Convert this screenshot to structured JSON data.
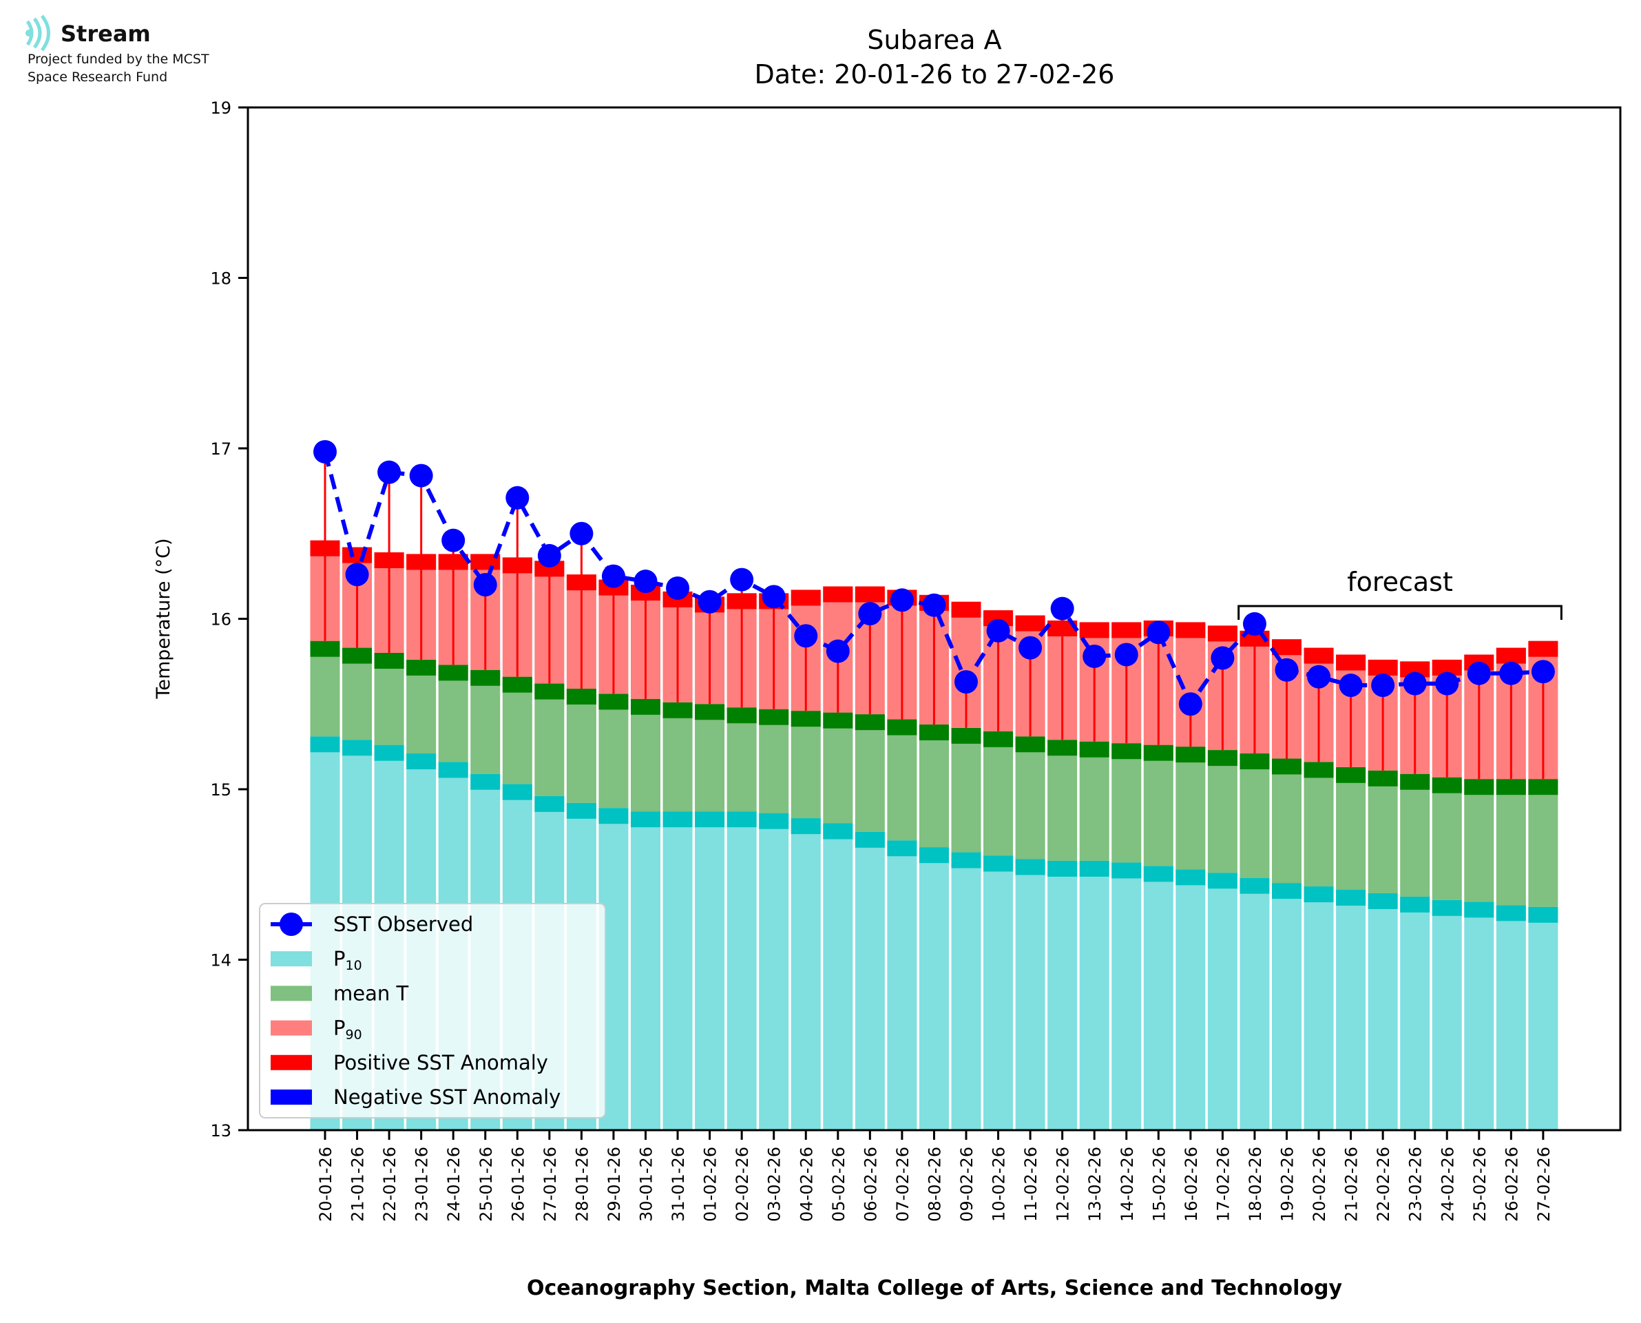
{
  "logo": {
    "name": "Stream",
    "line1": "Project funded by the MCST",
    "line2": "Space Research Fund"
  },
  "colors": {
    "p10": "#80dfdf",
    "p10_cap": "#00c2c2",
    "mean": "#80c080",
    "mean_cap": "#008000",
    "p90": "#ff7f7f",
    "p90_cap": "#ff0000",
    "observed": "#0000ff",
    "anomaly_line": "#ff0000",
    "legend_bg": "#ffffff"
  },
  "chart_data": {
    "type": "bar",
    "title": "Subarea A",
    "subtitle": "Date: 20-01-26 to 27-02-26",
    "xlabel": "Oceanography Section, Malta College of Arts, Science and Technology",
    "ylabel": "Temperature (°C)",
    "ylim": [
      13,
      19
    ],
    "yticks": [
      "13",
      "14",
      "15",
      "16",
      "17",
      "18",
      "19"
    ],
    "grid": false,
    "legend_position": "lower-left",
    "annotation": "forecast",
    "forecast_start_index": 29,
    "categories": [
      "20-01-26",
      "21-01-26",
      "22-01-26",
      "23-01-26",
      "24-01-26",
      "25-01-26",
      "26-01-26",
      "27-01-26",
      "28-01-26",
      "29-01-26",
      "30-01-26",
      "31-01-26",
      "01-02-26",
      "02-02-26",
      "03-02-26",
      "04-02-26",
      "05-02-26",
      "06-02-26",
      "07-02-26",
      "08-02-26",
      "09-02-26",
      "10-02-26",
      "11-02-26",
      "12-02-26",
      "13-02-26",
      "14-02-26",
      "15-02-26",
      "16-02-26",
      "17-02-26",
      "18-02-26",
      "19-02-26",
      "20-02-26",
      "21-02-26",
      "22-02-26",
      "23-02-26",
      "24-02-26",
      "25-02-26",
      "26-02-26",
      "27-02-26"
    ],
    "p10": [
      15.31,
      15.29,
      15.26,
      15.21,
      15.16,
      15.09,
      15.03,
      14.96,
      14.92,
      14.89,
      14.87,
      14.87,
      14.87,
      14.87,
      14.86,
      14.83,
      14.8,
      14.75,
      14.7,
      14.66,
      14.63,
      14.61,
      14.59,
      14.58,
      14.58,
      14.57,
      14.55,
      14.53,
      14.51,
      14.48,
      14.45,
      14.43,
      14.41,
      14.39,
      14.37,
      14.35,
      14.34,
      14.32,
      14.31
    ],
    "mean": [
      15.87,
      15.83,
      15.8,
      15.76,
      15.73,
      15.7,
      15.66,
      15.62,
      15.59,
      15.56,
      15.53,
      15.51,
      15.5,
      15.48,
      15.47,
      15.46,
      15.45,
      15.44,
      15.41,
      15.38,
      15.36,
      15.34,
      15.31,
      15.29,
      15.28,
      15.27,
      15.26,
      15.25,
      15.23,
      15.21,
      15.18,
      15.16,
      15.13,
      15.11,
      15.09,
      15.07,
      15.06,
      15.06,
      15.06
    ],
    "p90": [
      16.46,
      16.42,
      16.39,
      16.38,
      16.38,
      16.38,
      16.36,
      16.34,
      16.26,
      16.23,
      16.2,
      16.16,
      16.13,
      16.15,
      16.15,
      16.17,
      16.19,
      16.19,
      16.17,
      16.14,
      16.1,
      16.05,
      16.02,
      15.99,
      15.98,
      15.98,
      15.99,
      15.98,
      15.96,
      15.93,
      15.88,
      15.83,
      15.79,
      15.76,
      15.75,
      15.76,
      15.79,
      15.83,
      15.87
    ],
    "series": [
      {
        "name": "SST Observed",
        "values": [
          16.98,
          16.26,
          16.86,
          16.84,
          16.46,
          16.2,
          16.71,
          16.37,
          16.5,
          16.25,
          16.22,
          16.18,
          16.1,
          16.23,
          16.13,
          15.9,
          15.81,
          16.03,
          16.11,
          16.08,
          15.63,
          15.93,
          15.83,
          16.06,
          15.78,
          15.79,
          15.92,
          15.5,
          15.77,
          15.97,
          15.7,
          15.66,
          15.61,
          15.61,
          15.62,
          15.62,
          15.68,
          15.68,
          15.69
        ]
      }
    ],
    "legend": [
      {
        "label": "SST Observed",
        "kind": "line-marker"
      },
      {
        "label": "P",
        "sub": "10",
        "kind": "patch",
        "color_key": "p10"
      },
      {
        "label": "mean T",
        "kind": "patch",
        "color_key": "mean"
      },
      {
        "label": "P",
        "sub": "90",
        "kind": "patch",
        "color_key": "p90"
      },
      {
        "label": "Positive SST Anomaly",
        "kind": "patch",
        "color_key": "p90_cap"
      },
      {
        "label": "Negative SST Anomaly",
        "kind": "patch",
        "color_key": "observed"
      }
    ]
  }
}
